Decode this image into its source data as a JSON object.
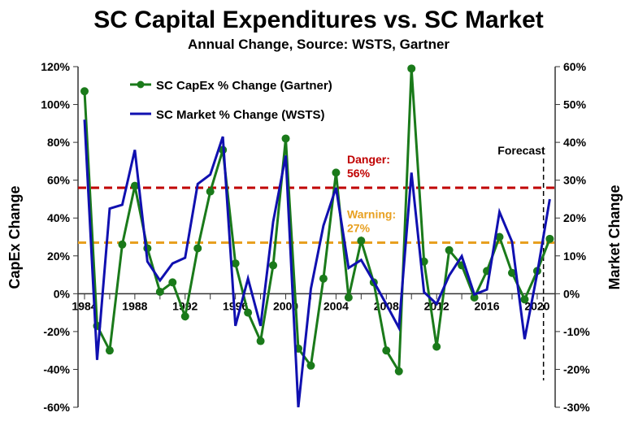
{
  "chart_data": {
    "type": "line",
    "title": "SC Capital Expenditures vs. SC Market",
    "subtitle": "Annual Change, Source: WSTS, Gartner",
    "ylabel": "CapEx Change",
    "y2label": "Market Change",
    "ylim": [
      -60,
      120
    ],
    "y2lim": [
      -30,
      60
    ],
    "yticks": [
      "-60%",
      "-40%",
      "-20%",
      "0%",
      "20%",
      "40%",
      "60%",
      "80%",
      "100%",
      "120%"
    ],
    "y2ticks": [
      "-30%",
      "-20%",
      "-10%",
      "0%",
      "10%",
      "20%",
      "30%",
      "40%",
      "50%",
      "60%"
    ],
    "xticks": [
      "1984",
      "1988",
      "1992",
      "1996",
      "2000",
      "2004",
      "2008",
      "2012",
      "2016",
      "2020"
    ],
    "x": [
      1984,
      1985,
      1986,
      1987,
      1988,
      1989,
      1990,
      1991,
      1992,
      1993,
      1994,
      1995,
      1996,
      1997,
      1998,
      1999,
      2000,
      2001,
      2002,
      2003,
      2004,
      2005,
      2006,
      2007,
      2008,
      2009,
      2010,
      2011,
      2012,
      2013,
      2014,
      2015,
      2016,
      2017,
      2018,
      2019,
      2020,
      2021
    ],
    "series": [
      {
        "name": "SC CapEx % Change (Gartner)",
        "axis": "left",
        "color": "#1a7a1a",
        "values": [
          107,
          -17,
          -30,
          26,
          57,
          24,
          1,
          6,
          -12,
          24,
          54,
          76,
          16,
          -10,
          -25,
          15,
          82,
          -29,
          -38,
          8,
          64,
          -2,
          28,
          6,
          -30,
          -41,
          119,
          17,
          -28,
          23,
          15,
          -2,
          12,
          30,
          11,
          -3,
          12,
          29
        ]
      },
      {
        "name": "SC Market % Change (WSTS)",
        "axis": "right",
        "color": "#1010b0",
        "values": [
          46,
          -17.5,
          22.5,
          23.5,
          38,
          8.5,
          3.5,
          8,
          9.5,
          29,
          31.5,
          41.5,
          -8.5,
          4,
          -8.5,
          19,
          36.5,
          -30,
          1.3,
          18,
          28,
          6.8,
          8.9,
          3.2,
          -2.8,
          -9,
          32,
          0.4,
          -2.7,
          4.8,
          9.9,
          -0.2,
          1.1,
          21.6,
          13.7,
          -12,
          5.4,
          25
        ]
      }
    ],
    "reference_lines": [
      {
        "label": "Danger:",
        "value_label": "56%",
        "value": 56,
        "color": "#c00000"
      },
      {
        "label": "Warning:",
        "value_label": "27%",
        "value": 27,
        "color": "#e8a020"
      }
    ],
    "forecast": {
      "label": "Forecast",
      "year": 2020.5
    },
    "legend": "top-left",
    "grid": false
  }
}
